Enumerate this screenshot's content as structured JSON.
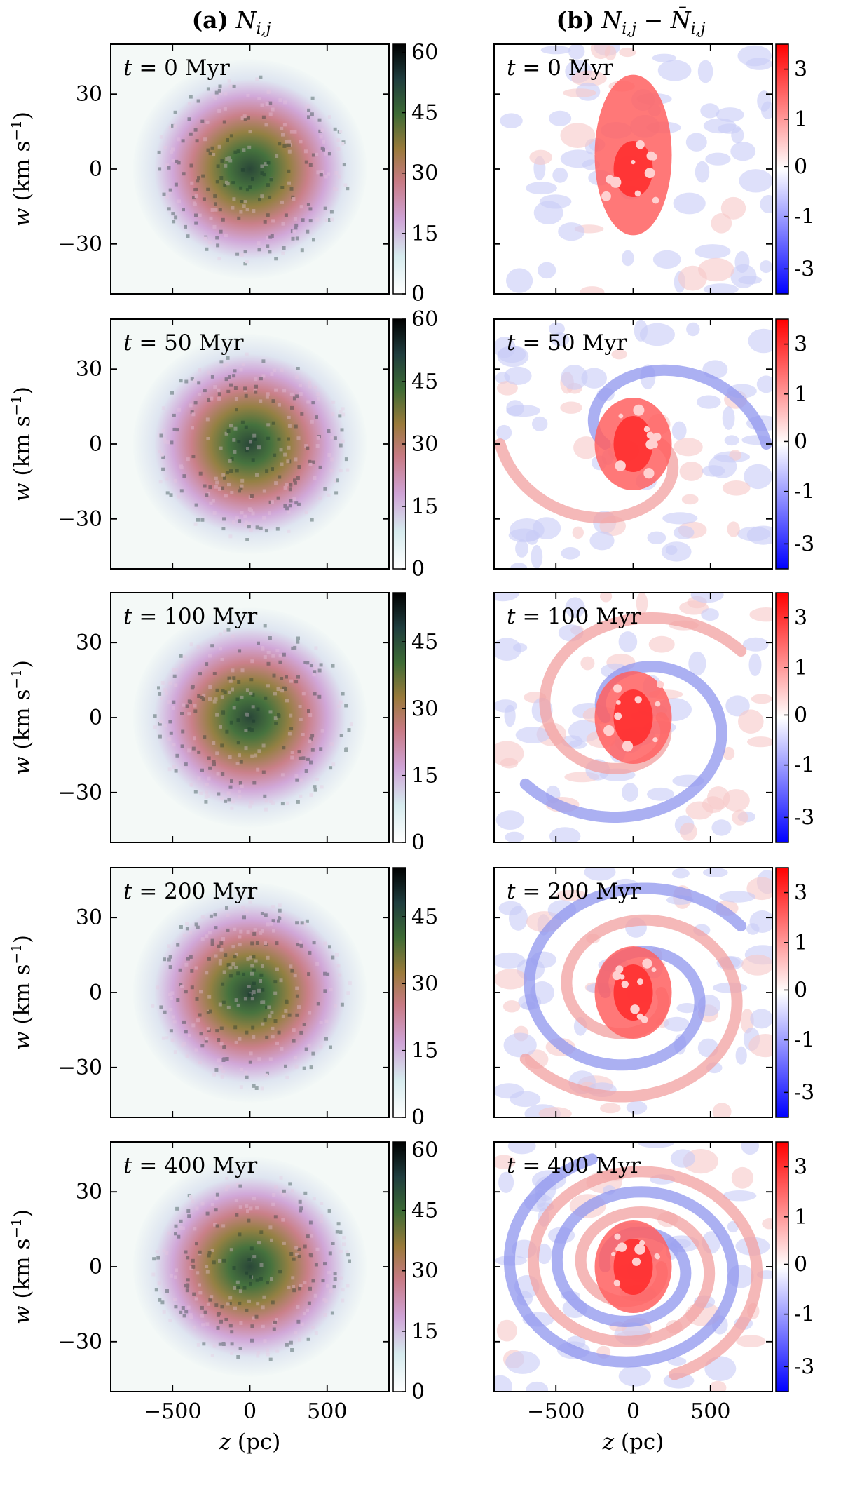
{
  "column_titles": {
    "a": "(a) N_{i,j}",
    "b": "(b) N_{i,j} − N̄_{i,j}"
  },
  "chart_data": {
    "type": "heatmap",
    "description_source": "phase-space density snapshots",
    "xlabel": "z (pc)",
    "ylabel": "w (km s⁻¹)",
    "xlim": [
      -900,
      900
    ],
    "ylim": [
      -50,
      50
    ],
    "xticks": [
      -500,
      0,
      500
    ],
    "xtick_labels": [
      "−500",
      "0",
      "500"
    ],
    "yticks": [
      30,
      0,
      -30
    ],
    "ytick_labels": [
      "30",
      "0",
      "−30"
    ],
    "snapshots": [
      {
        "label": "t = 0 Myr",
        "time_myr": 0,
        "density_cbar_max": 62,
        "density_ticks": [
          "60",
          "45",
          "30",
          "15",
          "0"
        ],
        "residual_ticks": [
          "3",
          "1",
          "0",
          "-1",
          "-3"
        ]
      },
      {
        "label": "t = 50 Myr",
        "time_myr": 50,
        "density_cbar_max": 60,
        "density_ticks": [
          "60",
          "45",
          "30",
          "15",
          "0"
        ],
        "residual_ticks": [
          "3",
          "1",
          "0",
          "-1",
          "-3"
        ]
      },
      {
        "label": "t = 100 Myr",
        "time_myr": 100,
        "density_cbar_max": 56,
        "density_ticks": [
          "45",
          "30",
          "15",
          "0"
        ],
        "residual_ticks": [
          "3",
          "1",
          "0",
          "-1",
          "-3"
        ]
      },
      {
        "label": "t = 200 Myr",
        "time_myr": 200,
        "density_cbar_max": 56,
        "density_ticks": [
          "45",
          "30",
          "15",
          "0"
        ],
        "residual_ticks": [
          "3",
          "1",
          "0",
          "-1",
          "-3"
        ]
      },
      {
        "label": "t = 400 Myr",
        "time_myr": 400,
        "density_cbar_max": 62,
        "density_ticks": [
          "60",
          "45",
          "30",
          "15",
          "0"
        ],
        "residual_ticks": [
          "3",
          "1",
          "0",
          "-1",
          "-3"
        ]
      }
    ],
    "density_colormap": [
      "#ffffff",
      "#d8e8f0",
      "#c9a6d6",
      "#c9708a",
      "#a07a3a",
      "#4a7a3a",
      "#1a3a3a",
      "#000000"
    ],
    "residual_colormap": [
      "#0000ff",
      "#ffffff",
      "#ff0000"
    ]
  }
}
